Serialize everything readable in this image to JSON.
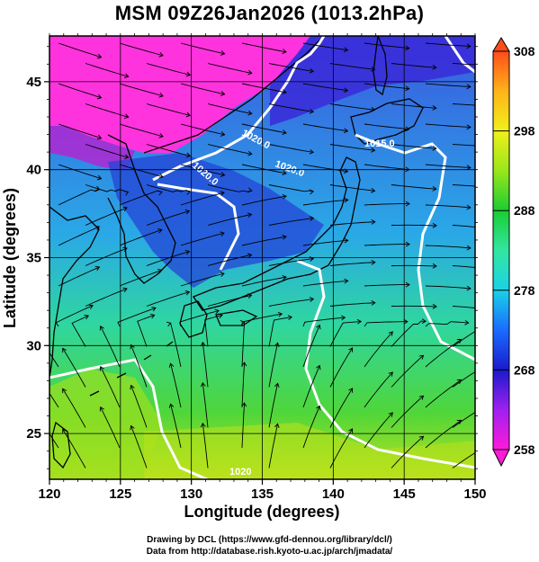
{
  "title": "MSM 09Z26Jan2026 (1013.2hPa)",
  "axes": {
    "x_label": "Longitude (degrees)",
    "y_label": "Latitude  (degrees)",
    "x_ticks": [
      "120",
      "125",
      "130",
      "135",
      "140",
      "145",
      "150"
    ],
    "y_ticks": [
      "25",
      "30",
      "35",
      "40",
      "45"
    ]
  },
  "chart_data": {
    "type": "heatmap",
    "title": "MSM 09Z26Jan2026 (1013.2hPa)",
    "xlabel": "Longitude (degrees)",
    "ylabel": "Latitude  (degrees)",
    "xlim": [
      120,
      150
    ],
    "ylim": [
      22.4,
      47.6
    ],
    "grid": true,
    "colorbar": {
      "min": 258,
      "max": 308,
      "ticks": [
        258,
        268,
        278,
        288,
        298,
        308
      ],
      "tick_labels": [
        "258",
        "268",
        "278",
        "288",
        "298",
        "308"
      ],
      "stops": [
        "#ff1ad9",
        "#a020f0",
        "#1a1acc",
        "#1a6cff",
        "#1ad2e6",
        "#33e6a0",
        "#1acc33",
        "#99e61a",
        "#f0f01a",
        "#ffb31a",
        "#ff4d1a"
      ]
    },
    "contour_labels": [
      "1020.0",
      "1020.0",
      "1020.0",
      "1015.0",
      "1020"
    ],
    "field": "temperature (K) with wind streamlines"
  },
  "credits": {
    "line1": "Drawing by DCL (https://www.gfd-dennou.org/library/dcl/)",
    "line2": "Data from http://database.rish.kyoto-u.ac.jp/arch/jmadata/"
  }
}
